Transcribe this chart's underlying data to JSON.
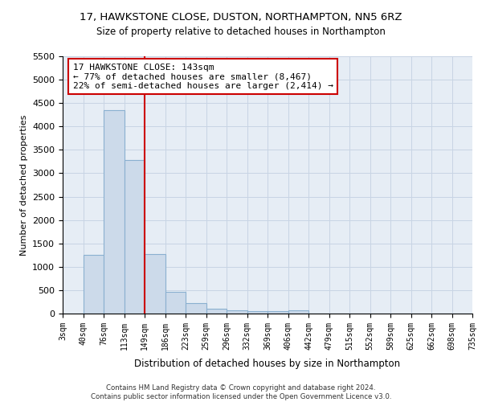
{
  "title_line1": "17, HAWKSTONE CLOSE, DUSTON, NORTHAMPTON, NN5 6RZ",
  "title_line2": "Size of property relative to detached houses in Northampton",
  "xlabel": "Distribution of detached houses by size in Northampton",
  "ylabel": "Number of detached properties",
  "footer": "Contains HM Land Registry data © Crown copyright and database right 2024.\nContains public sector information licensed under the Open Government Licence v3.0.",
  "bin_labels": [
    "3sqm",
    "40sqm",
    "76sqm",
    "113sqm",
    "149sqm",
    "186sqm",
    "223sqm",
    "259sqm",
    "296sqm",
    "332sqm",
    "369sqm",
    "406sqm",
    "442sqm",
    "479sqm",
    "515sqm",
    "552sqm",
    "589sqm",
    "625sqm",
    "662sqm",
    "698sqm",
    "735sqm"
  ],
  "bar_values": [
    0,
    1260,
    4340,
    3280,
    1280,
    470,
    220,
    100,
    65,
    60,
    50,
    75,
    0,
    0,
    0,
    0,
    0,
    0,
    0,
    0
  ],
  "bar_color": "#ccdaea",
  "bar_edge_color": "#8ab0d0",
  "grid_color": "#c8d4e4",
  "background_color": "#e6edf5",
  "vline_color": "#cc0000",
  "annotation_text": "17 HAWKSTONE CLOSE: 143sqm\n← 77% of detached houses are smaller (8,467)\n22% of semi-detached houses are larger (2,414) →",
  "annotation_box_color": "#cc0000",
  "ylim": [
    0,
    5500
  ],
  "yticks": [
    0,
    500,
    1000,
    1500,
    2000,
    2500,
    3000,
    3500,
    4000,
    4500,
    5000,
    5500
  ]
}
